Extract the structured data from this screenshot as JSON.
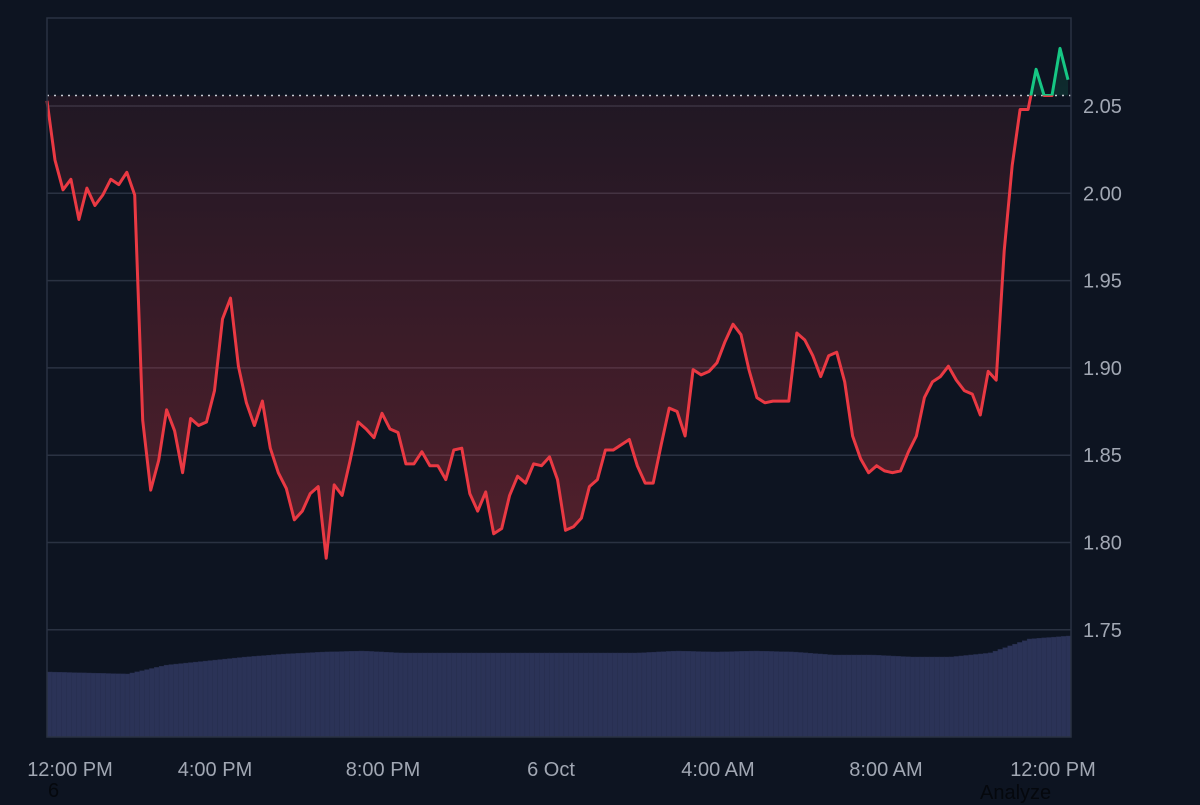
{
  "chart_data": {
    "type": "area",
    "title": "",
    "xlabel": "",
    "ylabel": "",
    "xlim": [
      "5 Oct 12:00 PM",
      "6 Oct 12:23 PM"
    ],
    "ylim": [
      1.7,
      2.1
    ],
    "grid": true,
    "legend": "none",
    "baseline": 2.056,
    "x_ticks": [
      "12:00 PM",
      "4:00 PM",
      "8:00 PM",
      "6 Oct",
      "4:00 AM",
      "8:00 AM",
      "12:00 PM"
    ],
    "y_ticks": [
      "2.05",
      "2.00",
      "1.95",
      "1.90",
      "1.85",
      "1.80",
      "1.75"
    ],
    "y_tick_values": [
      2.05,
      2.0,
      1.95,
      1.9,
      1.85,
      1.8,
      1.75
    ],
    "series": [
      {
        "values": [
          2.053,
          2.019,
          2.002,
          2.008,
          1.985,
          2.003,
          1.993,
          1.999,
          2.008,
          2.005,
          2.012,
          1.999,
          1.87,
          1.83,
          1.847,
          1.876,
          1.864,
          1.84,
          1.871,
          1.867,
          1.869,
          1.887,
          1.928,
          1.94,
          1.901,
          1.88,
          1.867,
          1.881,
          1.854,
          1.84,
          1.831,
          1.813,
          1.818,
          1.828,
          1.832,
          1.791,
          1.833,
          1.827,
          1.847,
          1.869,
          1.865,
          1.86,
          1.874,
          1.865,
          1.863,
          1.845,
          1.845,
          1.852,
          1.844,
          1.844,
          1.836,
          1.853,
          1.854,
          1.828,
          1.818,
          1.829,
          1.805,
          1.808,
          1.827,
          1.838,
          1.834,
          1.845,
          1.844,
          1.849,
          1.836,
          1.807,
          1.809,
          1.814,
          1.832,
          1.836,
          1.853,
          1.853,
          1.856,
          1.859,
          1.844,
          1.834,
          1.834,
          1.856,
          1.877,
          1.875,
          1.861,
          1.899,
          1.896,
          1.898,
          1.903,
          1.915,
          1.925,
          1.919,
          1.899,
          1.883,
          1.88,
          1.881,
          1.881,
          1.881,
          1.92,
          1.916,
          1.907,
          1.895,
          1.907,
          1.909,
          1.892,
          1.861,
          1.848,
          1.84,
          1.844,
          1.841,
          1.84,
          1.841,
          1.852,
          1.861,
          1.883,
          1.892,
          1.895,
          1.901,
          1.893,
          1.887,
          1.885,
          1.873,
          1.898,
          1.893,
          1.967,
          2.016,
          2.048,
          2.048,
          2.071,
          2.056,
          2.056,
          2.083,
          2.065
        ]
      }
    ],
    "volume_relative": [
      65,
      64,
      63,
      72,
      76,
      80,
      83,
      85,
      86,
      84,
      84,
      84,
      84,
      84,
      84,
      84,
      86,
      85,
      86,
      85,
      82,
      82,
      80,
      80,
      84,
      98,
      101
    ],
    "colors": {
      "background": "#0d1421",
      "up": "#16c784",
      "down": "#ea3943",
      "volume": "#2b3357",
      "grid": "#2a3242",
      "tick_text": "#a1a7b3"
    }
  },
  "stray": {
    "left": "6",
    "right": "Analyze"
  }
}
